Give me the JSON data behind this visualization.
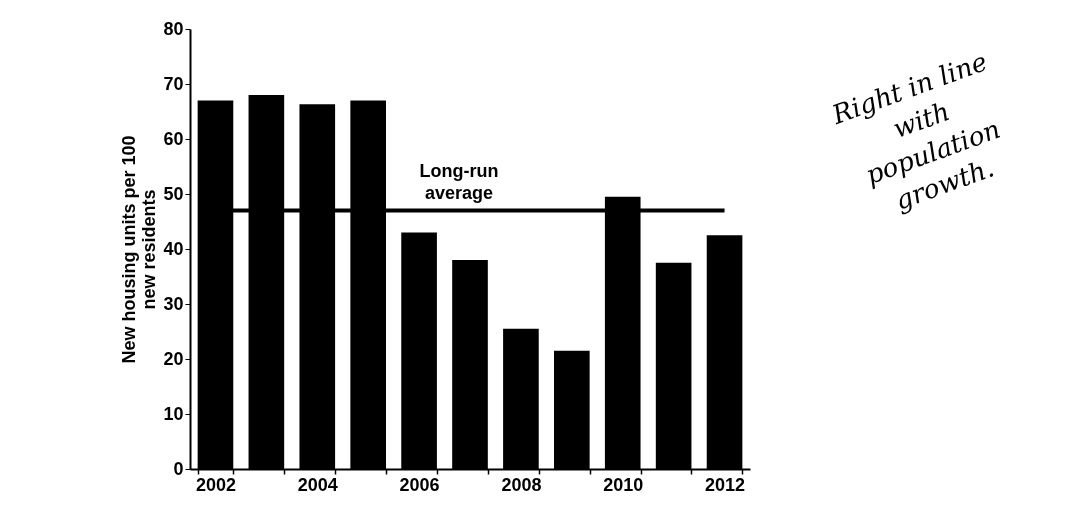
{
  "chart_data": {
    "type": "bar",
    "ylabel": "New housing units per 100 new residents",
    "categories": [
      "2002",
      null,
      "2004",
      null,
      "2006",
      null,
      "2008",
      null,
      "2010",
      null,
      "2012"
    ],
    "values": [
      67,
      68,
      66.3,
      67,
      43,
      38,
      25.5,
      21.5,
      49.5,
      37.5,
      42.5
    ],
    "color": "#000000",
    "ylim": [
      0,
      80
    ],
    "yticks": [
      0,
      10,
      20,
      30,
      40,
      50,
      60,
      70,
      80
    ],
    "grid": false,
    "ref_lines": [
      {
        "axis": "y",
        "value": 47,
        "label": "Long-run average",
        "color": "#000000"
      }
    ],
    "annotations": [
      "Right in line with population growth."
    ]
  }
}
